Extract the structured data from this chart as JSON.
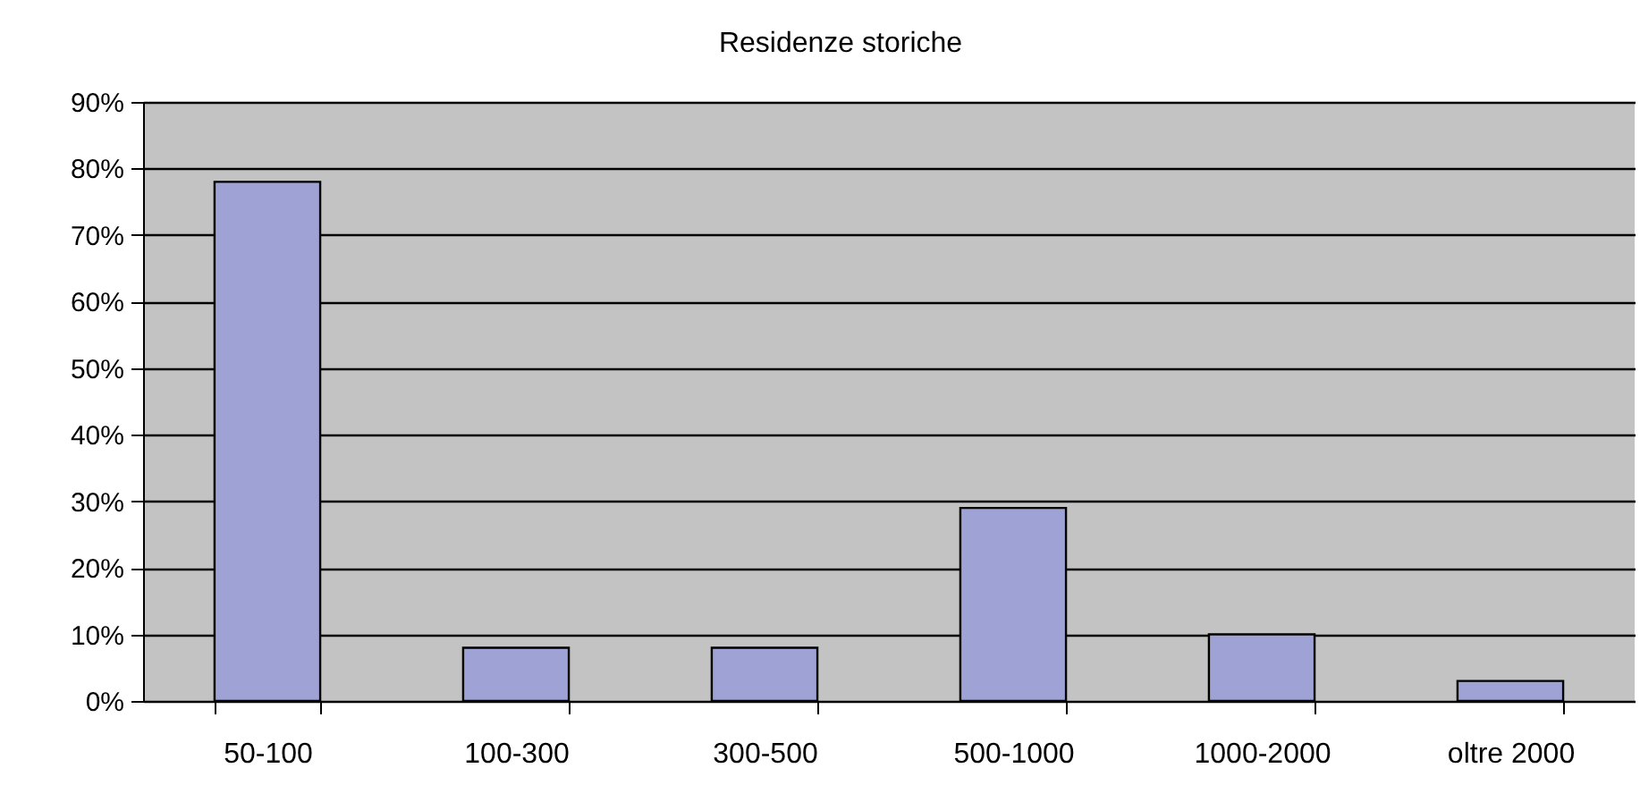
{
  "chart_data": {
    "type": "bar",
    "title": "Residenze storiche",
    "categories": [
      "50-100",
      "100-300",
      "300-500",
      "500-1000",
      "1000-2000",
      "oltre 2000"
    ],
    "values": [
      78,
      8,
      8,
      29,
      10,
      3
    ],
    "color": "#9ea2d4",
    "ylim": [
      0,
      90
    ],
    "yticks": [
      {
        "value": 0,
        "label": "0%"
      },
      {
        "value": 10,
        "label": "10%"
      },
      {
        "value": 20,
        "label": "20%"
      },
      {
        "value": 30,
        "label": "30%"
      },
      {
        "value": 40,
        "label": "40%"
      },
      {
        "value": 50,
        "label": "50%"
      },
      {
        "value": 60,
        "label": "60%"
      },
      {
        "value": 70,
        "label": "70%"
      },
      {
        "value": 80,
        "label": "80%"
      },
      {
        "value": 90,
        "label": "90%"
      }
    ],
    "grid": "y"
  }
}
